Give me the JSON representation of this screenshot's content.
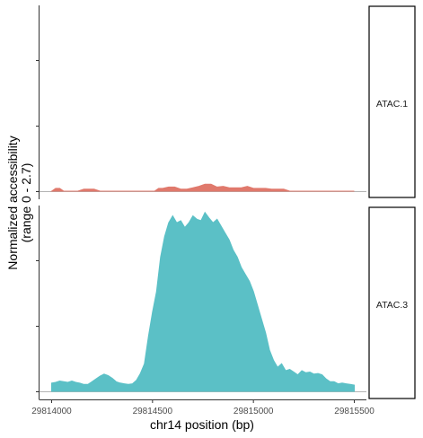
{
  "chart_data": {
    "type": "area",
    "xlabel": "chr14 position (bp)",
    "ylabel_line1": "Normalized accessibility",
    "ylabel_line2": "(range 0 - 2.7)",
    "xlim": [
      29813940,
      29815560
    ],
    "ylim": [
      0,
      2.7
    ],
    "x_ticks": [
      29814000,
      29814500,
      29815000,
      29815500
    ],
    "x_tick_labels": [
      "29814000",
      "29814500",
      "29815000",
      "29815500"
    ],
    "series": [
      {
        "name": "ATAC.1",
        "color": "#E0796C",
        "x": [
          29814000,
          29814020,
          29814040,
          29814060,
          29814080,
          29814100,
          29814130,
          29814160,
          29814180,
          29814210,
          29814240,
          29814270,
          29814300,
          29814330,
          29814360,
          29814400,
          29814440,
          29814470,
          29814490,
          29814510,
          29814530,
          29814550,
          29814580,
          29814610,
          29814640,
          29814670,
          29814700,
          29814730,
          29814760,
          29814790,
          29814820,
          29814850,
          29814880,
          29814910,
          29814940,
          29814970,
          29815000,
          29815030,
          29815060,
          29815090,
          29815120,
          29815150,
          29815180,
          29815200,
          29815250,
          29815300,
          29815350,
          29815400,
          29815450,
          29815500
        ],
        "y": [
          0,
          0.04,
          0.04,
          0,
          0,
          0,
          0,
          0.03,
          0.03,
          0.03,
          0,
          0,
          0,
          0,
          0,
          0,
          0,
          0,
          0,
          0,
          0.04,
          0.04,
          0.06,
          0.06,
          0.03,
          0.03,
          0.05,
          0.07,
          0.1,
          0.1,
          0.06,
          0.07,
          0.05,
          0.05,
          0.05,
          0.07,
          0.04,
          0.04,
          0.04,
          0.03,
          0.03,
          0.03,
          0,
          0,
          0,
          0,
          0,
          0,
          0,
          0
        ]
      },
      {
        "name": "ATAC.3",
        "color": "#5BC0C6",
        "x": [
          29814000,
          29814020,
          29814040,
          29814060,
          29814080,
          29814100,
          29814120,
          29814140,
          29814160,
          29814180,
          29814200,
          29814220,
          29814240,
          29814260,
          29814280,
          29814300,
          29814320,
          29814340,
          29814360,
          29814380,
          29814400,
          29814420,
          29814440,
          29814460,
          29814480,
          29814500,
          29814520,
          29814540,
          29814560,
          29814580,
          29814600,
          29814620,
          29814640,
          29814660,
          29814680,
          29814700,
          29814720,
          29814740,
          29814760,
          29814780,
          29814800,
          29814820,
          29814840,
          29814860,
          29814880,
          29814900,
          29814920,
          29814940,
          29814960,
          29814980,
          29815000,
          29815020,
          29815040,
          29815060,
          29815080,
          29815100,
          29815120,
          29815140,
          29815160,
          29815180,
          29815200,
          29815220,
          29815240,
          29815260,
          29815280,
          29815300,
          29815320,
          29815340,
          29815360,
          29815380,
          29815400,
          29815420,
          29815440,
          29815460,
          29815480,
          29815500
        ],
        "y": [
          0.12,
          0.13,
          0.15,
          0.14,
          0.13,
          0.15,
          0.13,
          0.12,
          0.1,
          0.1,
          0.14,
          0.18,
          0.22,
          0.25,
          0.23,
          0.19,
          0.14,
          0.12,
          0.11,
          0.1,
          0.11,
          0.16,
          0.26,
          0.4,
          0.8,
          1.15,
          1.45,
          1.95,
          2.25,
          2.45,
          2.55,
          2.45,
          2.48,
          2.38,
          2.45,
          2.55,
          2.5,
          2.48,
          2.6,
          2.52,
          2.45,
          2.5,
          2.4,
          2.3,
          2.2,
          2.05,
          1.95,
          1.8,
          1.7,
          1.6,
          1.45,
          1.25,
          1.05,
          0.85,
          0.6,
          0.45,
          0.35,
          0.4,
          0.3,
          0.32,
          0.28,
          0.24,
          0.3,
          0.27,
          0.28,
          0.25,
          0.26,
          0.24,
          0.18,
          0.14,
          0.14,
          0.11,
          0.12,
          0.11,
          0.1,
          0.09
        ]
      }
    ]
  }
}
